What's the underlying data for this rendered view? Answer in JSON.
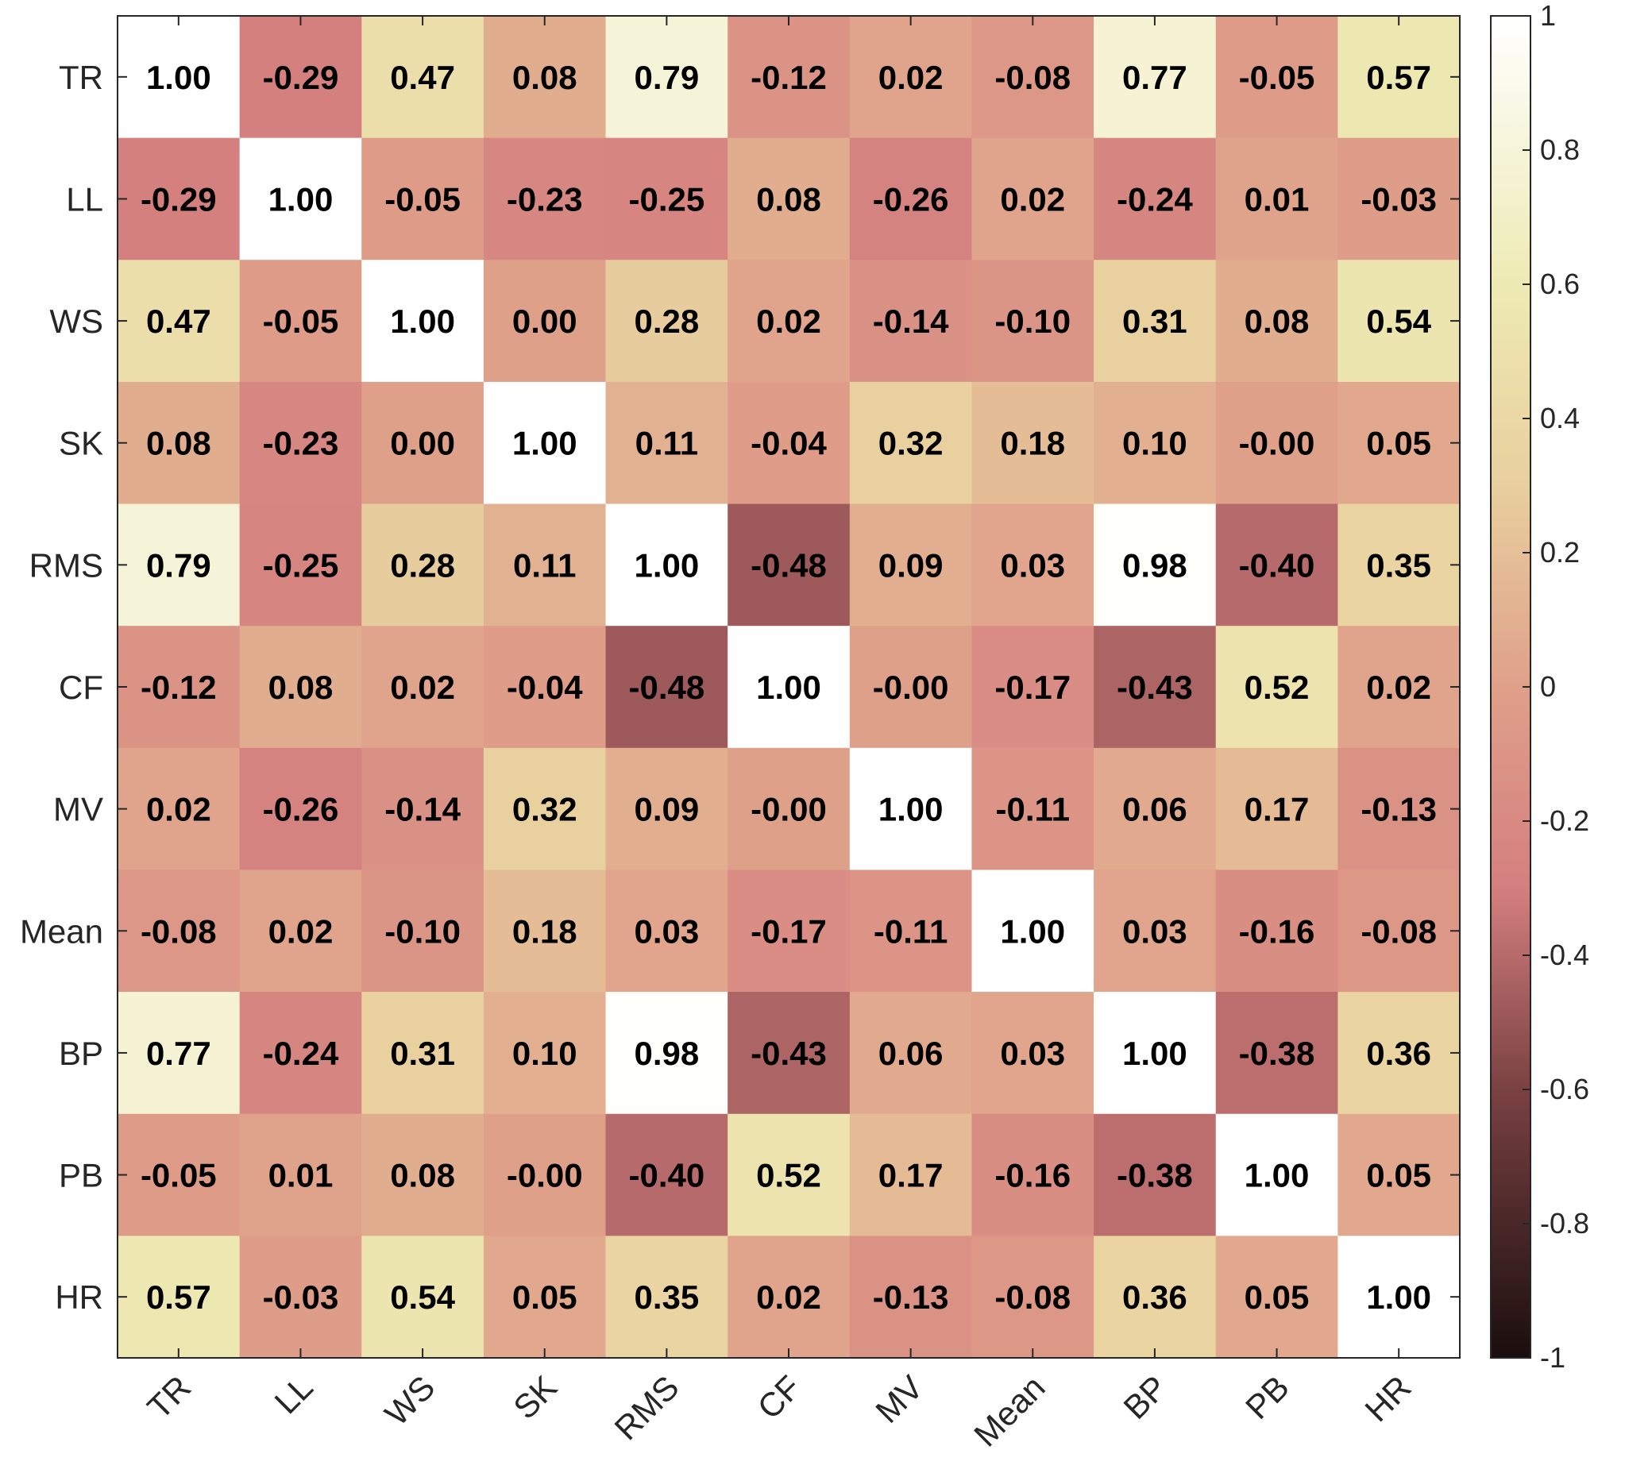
{
  "chart_data": {
    "type": "heatmap",
    "title": "",
    "xlabel": "",
    "ylabel": "",
    "x_categories": [
      "TR",
      "LL",
      "WS",
      "SK",
      "RMS",
      "CF",
      "MV",
      "Mean",
      "BP",
      "PB",
      "HR"
    ],
    "y_categories": [
      "TR",
      "LL",
      "WS",
      "SK",
      "RMS",
      "CF",
      "MV",
      "Mean",
      "BP",
      "PB",
      "HR"
    ],
    "values": [
      [
        "1.00",
        "-0.29",
        "0.47",
        "0.08",
        "0.79",
        "-0.12",
        "0.02",
        "-0.08",
        "0.77",
        "-0.05",
        "0.57"
      ],
      [
        "-0.29",
        "1.00",
        "-0.05",
        "-0.23",
        "-0.25",
        "0.08",
        "-0.26",
        "0.02",
        "-0.24",
        "0.01",
        "-0.03"
      ],
      [
        "0.47",
        "-0.05",
        "1.00",
        "0.00",
        "0.28",
        "0.02",
        "-0.14",
        "-0.10",
        "0.31",
        "0.08",
        "0.54"
      ],
      [
        "0.08",
        "-0.23",
        "0.00",
        "1.00",
        "0.11",
        "-0.04",
        "0.32",
        "0.18",
        "0.10",
        "-0.00",
        "0.05"
      ],
      [
        "0.79",
        "-0.25",
        "0.28",
        "0.11",
        "1.00",
        "-0.48",
        "0.09",
        "0.03",
        "0.98",
        "-0.40",
        "0.35"
      ],
      [
        "-0.12",
        "0.08",
        "0.02",
        "-0.04",
        "-0.48",
        "1.00",
        "-0.00",
        "-0.17",
        "-0.43",
        "0.52",
        "0.02"
      ],
      [
        "0.02",
        "-0.26",
        "-0.14",
        "0.32",
        "0.09",
        "-0.00",
        "1.00",
        "-0.11",
        "0.06",
        "0.17",
        "-0.13"
      ],
      [
        "-0.08",
        "0.02",
        "-0.10",
        "0.18",
        "0.03",
        "-0.17",
        "-0.11",
        "1.00",
        "0.03",
        "-0.16",
        "-0.08"
      ],
      [
        "0.77",
        "-0.24",
        "0.31",
        "0.10",
        "0.98",
        "-0.43",
        "0.06",
        "0.03",
        "1.00",
        "-0.38",
        "0.36"
      ],
      [
        "-0.05",
        "0.01",
        "0.08",
        "-0.00",
        "-0.40",
        "0.52",
        "0.17",
        "-0.16",
        "-0.38",
        "1.00",
        "0.05"
      ],
      [
        "0.57",
        "-0.03",
        "0.54",
        "0.05",
        "0.35",
        "0.02",
        "-0.13",
        "-0.08",
        "0.36",
        "0.05",
        "1.00"
      ]
    ],
    "colorbar": {
      "range": [
        -1,
        1
      ],
      "ticks": [
        "1",
        "0.8",
        "0.6",
        "0.4",
        "0.2",
        "0",
        "-0.2",
        "-0.4",
        "-0.6",
        "-0.8",
        "-1"
      ],
      "colormap": [
        [
          -1.0,
          "#1a0e0e"
        ],
        [
          -0.6,
          "#7a4142"
        ],
        [
          -0.3,
          "#d47f7f"
        ],
        [
          0.0,
          "#dfa08a"
        ],
        [
          0.3,
          "#e8cf9e"
        ],
        [
          0.6,
          "#eeeab4"
        ],
        [
          1.0,
          "#ffffff"
        ]
      ]
    },
    "grid": false,
    "legend": "colorbar-right"
  }
}
